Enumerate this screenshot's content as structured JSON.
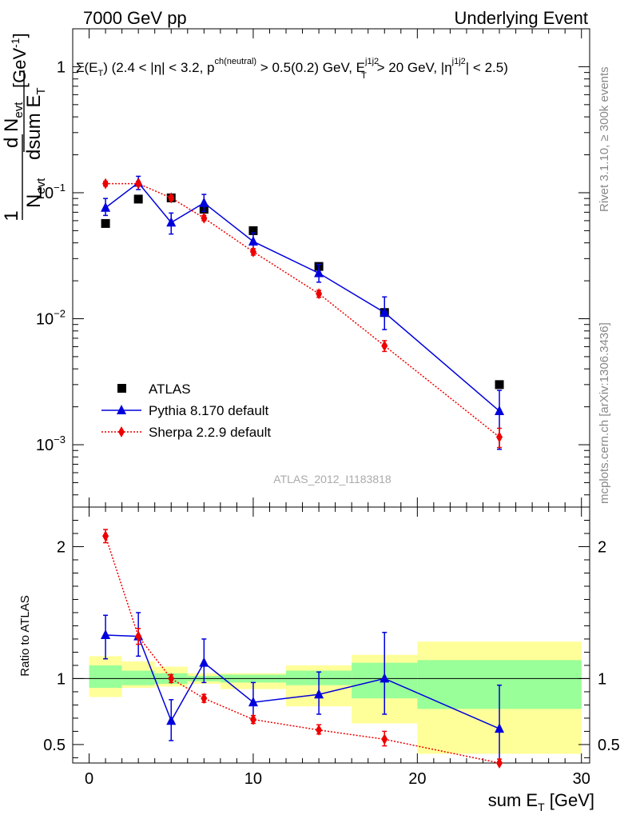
{
  "header": {
    "left": "7000 GeV pp",
    "right": "Underlying Event"
  },
  "side_labels": {
    "top": "Rivet 3.1.10, ≥ 300k events",
    "bottom": "mcplots.cern.ch [arXiv:1306.3436]"
  },
  "analysis_label": "ATLAS_2012_I1183818",
  "cut_label": {
    "a": "Σ(E",
    "a_sub": "T",
    "b": ") (2.4 < |η| < 3.2, p",
    "b_sup": "ch(neutral)",
    "c": " > 0.5(0.2) GeV, E",
    "c_sup": "j1j2",
    "c_sub": "T",
    "d": " > 20 GeV, |η",
    "d_sup": "j1j2",
    "e": "| < 2.5)"
  },
  "y_title": {
    "one": "1",
    "nevt": "N",
    "nevt_sub": "evt",
    "dn": "d N",
    "dn_sub": "evt",
    "dsum": "dsum E",
    "dsum_sub": "T",
    "unit": "[GeV",
    "unit_sup": "-1",
    "unit_end": "]"
  },
  "x_title": {
    "main": "sum E",
    "sub": "T",
    "unit": " [GeV]"
  },
  "ratio_title": "Ratio to ATLAS",
  "legend": {
    "atlas": "ATLAS",
    "pythia": "Pythia 8.170 default",
    "sherpa": "Sherpa 2.2.9 default"
  },
  "colors": {
    "atlas": "#000000",
    "pythia": "#0000dd",
    "sherpa": "#ee0000",
    "band_inner": "#99ff99",
    "band_outer": "#ffff99"
  },
  "chart_data": {
    "type": "scatter",
    "xlim": [
      -1,
      30.5
    ],
    "main_ylim_log": [
      0.00032,
      2.0
    ],
    "ratio_ylim": [
      0.36,
      2.3
    ],
    "y_log_scale": true,
    "main_y_ticks": [
      {
        "value": 1,
        "base": "1",
        "exp": ""
      },
      {
        "value": 0.1,
        "base": "10",
        "exp": "−1"
      },
      {
        "value": 0.01,
        "base": "10",
        "exp": "−2"
      },
      {
        "value": 0.001,
        "base": "10",
        "exp": "−3"
      }
    ],
    "ratio_y_ticks": [
      {
        "value": 0.5,
        "label": "0.5"
      },
      {
        "value": 1,
        "label": "1"
      },
      {
        "value": 2,
        "label": "2"
      }
    ],
    "x_ticks": [
      {
        "value": 0,
        "label": "0"
      },
      {
        "value": 10,
        "label": "10"
      },
      {
        "value": 20,
        "label": "20"
      },
      {
        "value": 30,
        "label": "30"
      }
    ],
    "bins": [
      {
        "lo": 0,
        "hi": 2,
        "inner": [
          0.93,
          1.1
        ],
        "outer": [
          0.86,
          1.17
        ]
      },
      {
        "lo": 2,
        "hi": 4,
        "inner": [
          0.95,
          1.06
        ],
        "outer": [
          0.93,
          1.13
        ]
      },
      {
        "lo": 4,
        "hi": 6,
        "inner": [
          0.96,
          1.04
        ],
        "outer": [
          0.94,
          1.09
        ]
      },
      {
        "lo": 6,
        "hi": 8,
        "inner": [
          0.98,
          1.02
        ],
        "outer": [
          0.96,
          1.04
        ]
      },
      {
        "lo": 8,
        "hi": 12,
        "inner": [
          0.97,
          1.03
        ],
        "outer": [
          0.92,
          1.04
        ]
      },
      {
        "lo": 12,
        "hi": 16,
        "inner": [
          0.95,
          1.06
        ],
        "outer": [
          0.79,
          1.1
        ]
      },
      {
        "lo": 16,
        "hi": 20,
        "inner": [
          0.85,
          1.12
        ],
        "outer": [
          0.66,
          1.18
        ]
      },
      {
        "lo": 20,
        "hi": 30,
        "inner": [
          0.77,
          1.14
        ],
        "outer": [
          0.43,
          1.28
        ]
      }
    ],
    "series": [
      {
        "name": "ATLAS",
        "marker": "square",
        "x": [
          1,
          3,
          5,
          7,
          10,
          14,
          18,
          25
        ],
        "y": [
          0.057,
          0.089,
          0.091,
          0.074,
          0.05,
          0.026,
          0.0112,
          0.003
        ]
      },
      {
        "name": "Pythia 8.170 default",
        "marker": "triangle",
        "x": [
          1,
          3,
          5,
          7,
          10,
          14,
          18,
          25
        ],
        "y": [
          0.076,
          0.12,
          0.058,
          0.083,
          0.041,
          0.023,
          0.0112,
          0.00185
        ],
        "y_err_lo": [
          0.066,
          0.106,
          0.047,
          0.071,
          0.034,
          0.0195,
          0.0082,
          0.00092
        ],
        "y_err_hi": [
          0.09,
          0.135,
          0.069,
          0.097,
          0.048,
          0.027,
          0.0149,
          0.0027
        ],
        "ratio": [
          1.33,
          1.32,
          0.68,
          1.12,
          0.82,
          0.88,
          1.0,
          0.62
        ],
        "ratio_err_lo": [
          1.15,
          1.17,
          0.53,
          0.97,
          0.68,
          0.73,
          0.73,
          0.3
        ],
        "ratio_err_hi": [
          1.48,
          1.5,
          0.84,
          1.3,
          0.97,
          1.05,
          1.35,
          0.95
        ]
      },
      {
        "name": "Sherpa 2.2.9 default",
        "marker": "diamond",
        "x": [
          1,
          3,
          5,
          7,
          10,
          14,
          18,
          25
        ],
        "y": [
          0.118,
          0.118,
          0.091,
          0.063,
          0.034,
          0.0158,
          0.0061,
          0.00115
        ],
        "y_err_lo": [
          0.113,
          0.113,
          0.087,
          0.06,
          0.032,
          0.0148,
          0.0055,
          0.00095
        ],
        "y_err_hi": [
          0.123,
          0.123,
          0.095,
          0.066,
          0.036,
          0.0168,
          0.0067,
          0.00135
        ],
        "ratio": [
          2.08,
          1.32,
          1.0,
          0.85,
          0.69,
          0.61,
          0.54,
          0.36
        ],
        "ratio_err_lo": [
          2.03,
          1.26,
          0.97,
          0.82,
          0.66,
          0.58,
          0.49,
          0.34
        ],
        "ratio_err_hi": [
          2.13,
          1.38,
          1.03,
          0.88,
          0.72,
          0.65,
          0.6,
          0.39
        ]
      }
    ]
  }
}
